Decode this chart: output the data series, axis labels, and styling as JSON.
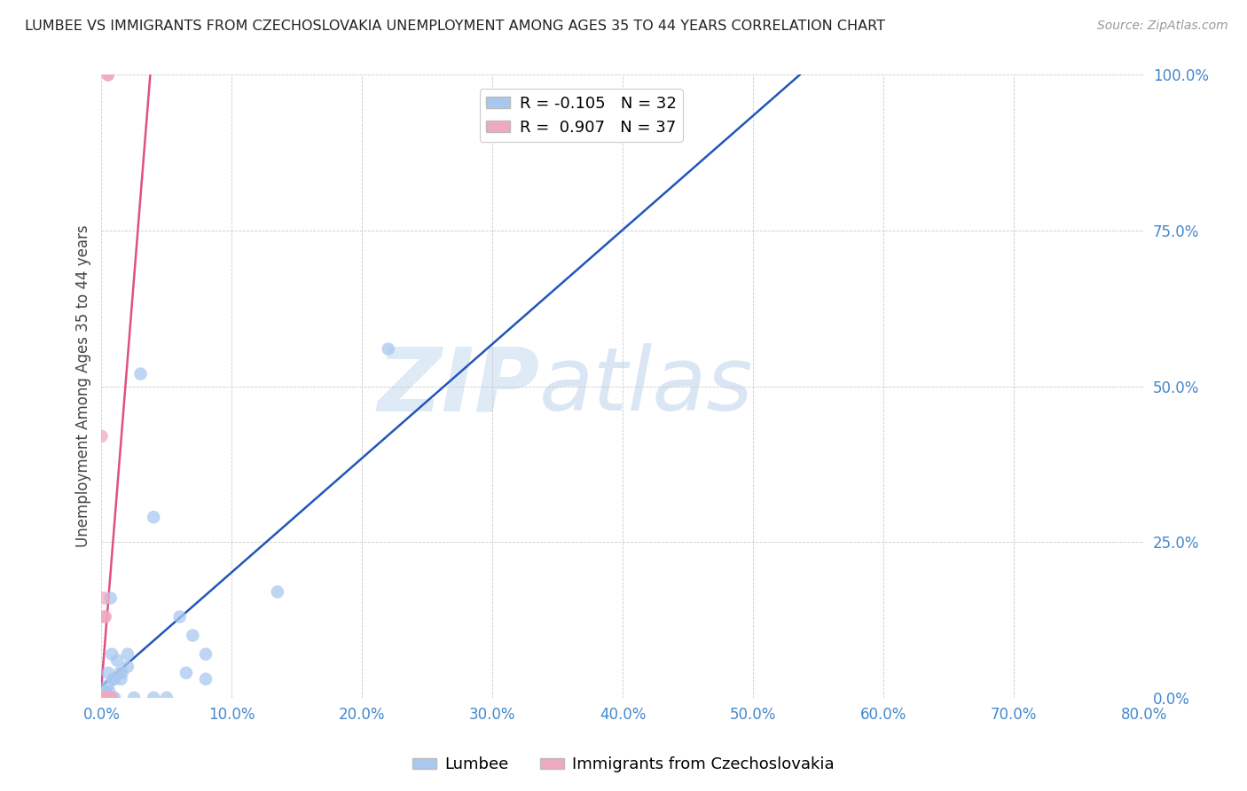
{
  "title": "LUMBEE VS IMMIGRANTS FROM CZECHOSLOVAKIA UNEMPLOYMENT AMONG AGES 35 TO 44 YEARS CORRELATION CHART",
  "source": "Source: ZipAtlas.com",
  "ylabel": "Unemployment Among Ages 35 to 44 years",
  "lumbee_R": -0.105,
  "lumbee_N": 32,
  "czech_R": 0.907,
  "czech_N": 37,
  "lumbee_color": "#a8c8f0",
  "czech_color": "#f0a8c0",
  "lumbee_line_color": "#2255bb",
  "czech_line_color": "#e05080",
  "watermark_zip": "ZIP",
  "watermark_atlas": "atlas",
  "lumbee_x": [
    0.001,
    0.003,
    0.005,
    0.005,
    0.005,
    0.006,
    0.006,
    0.007,
    0.007,
    0.008,
    0.008,
    0.009,
    0.01,
    0.01,
    0.012,
    0.014,
    0.015,
    0.016,
    0.02,
    0.02,
    0.025,
    0.03,
    0.04,
    0.04,
    0.05,
    0.06,
    0.065,
    0.07,
    0.08,
    0.08,
    0.135,
    0.22
  ],
  "lumbee_y": [
    0.0,
    0.01,
    0.02,
    0.0,
    0.04,
    0.0,
    0.01,
    0.0,
    0.16,
    0.0,
    0.07,
    0.03,
    0.03,
    0.0,
    0.06,
    0.04,
    0.03,
    0.04,
    0.05,
    0.07,
    0.0,
    0.52,
    0.29,
    0.0,
    0.0,
    0.13,
    0.04,
    0.1,
    0.03,
    0.07,
    0.17,
    0.56
  ],
  "czech_x": [
    0.0,
    0.0,
    0.0,
    0.0,
    0.0,
    0.0,
    0.0,
    0.0,
    0.0,
    0.0,
    0.0,
    0.0,
    0.001,
    0.001,
    0.001,
    0.001,
    0.002,
    0.002,
    0.002,
    0.002,
    0.002,
    0.002,
    0.002,
    0.003,
    0.003,
    0.003,
    0.003,
    0.003,
    0.004,
    0.004,
    0.004,
    0.005,
    0.005,
    0.006,
    0.006,
    0.007,
    0.008
  ],
  "czech_y": [
    0.0,
    0.0,
    0.0,
    0.0,
    0.0,
    0.0,
    0.0,
    0.0,
    0.0,
    0.0,
    0.42,
    0.0,
    0.0,
    0.0,
    0.0,
    0.0,
    0.0,
    0.0,
    0.16,
    0.13,
    0.0,
    0.0,
    0.0,
    0.0,
    0.13,
    0.0,
    0.0,
    0.0,
    0.0,
    0.0,
    0.0,
    1.0,
    1.0,
    0.0,
    0.0,
    0.0,
    0.0
  ],
  "xlim": [
    0.0,
    0.8
  ],
  "ylim": [
    0.0,
    1.0
  ],
  "xticks": [
    0.0,
    0.1,
    0.2,
    0.3,
    0.4,
    0.5,
    0.6,
    0.7,
    0.8
  ],
  "yticks": [
    0.0,
    0.25,
    0.5,
    0.75,
    1.0
  ],
  "xticklabels": [
    "0.0%",
    "10.0%",
    "20.0%",
    "30.0%",
    "40.0%",
    "50.0%",
    "60.0%",
    "70.0%",
    "80.0%"
  ],
  "yticklabels": [
    "0.0%",
    "25.0%",
    "50.0%",
    "75.0%",
    "100.0%"
  ]
}
